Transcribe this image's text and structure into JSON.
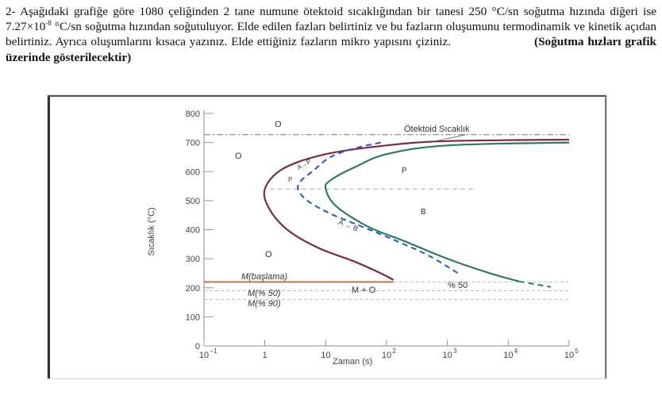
{
  "question": {
    "line1_a": "2- Aşağıdaki grafiğe göre 1080 çeliğinden 2 tane numune ötektoid sıcaklığından bir tanesi 250 °C/sn soğutma hızında diğeri ise 7.27×10",
    "line1_exp": "-8",
    "line1_b": " °C/sn soğutma hızından soğutuluyor. Elde edilen fazları belirtiniz ve bu fazların oluşumunu termodinamik ve kinetik açıdan belirtiniz. Ayrıca oluşumlarını kısaca yazınız. Elde ettiğiniz fazların mikro yapısını çiziniz.",
    "note": "(Soğutma hızları grafik üzerinde gösterilecektir)"
  },
  "chart_data": {
    "type": "line",
    "title": "",
    "xlabel": "Zaman (s)",
    "ylabel": "Sıcaklık (°C)",
    "x_scale": "log",
    "xlim": [
      0.1,
      100000
    ],
    "ylim": [
      0,
      800
    ],
    "y_ticks": [
      "0",
      "100",
      "200",
      "300",
      "400",
      "500",
      "600",
      "700",
      "800"
    ],
    "x_ticks": [
      {
        "base": "10",
        "exp": "−1"
      },
      {
        "base": "1",
        "exp": ""
      },
      {
        "base": "10",
        "exp": ""
      },
      {
        "base": "10",
        "exp": "2"
      },
      {
        "base": "10",
        "exp": "3"
      },
      {
        "base": "10",
        "exp": "4"
      },
      {
        "base": "10",
        "exp": "5"
      }
    ],
    "eutectoid_temperature": 727,
    "series": [
      {
        "style": "solid",
        "color": "#7b2a3f",
        "points": [
          [
            100000,
            710
          ],
          [
            1000,
            705
          ],
          [
            100,
            690
          ],
          [
            10,
            660
          ],
          [
            2,
            610
          ],
          [
            1,
            540
          ],
          [
            1.2,
            470
          ],
          [
            2.5,
            395
          ],
          [
            8,
            335
          ],
          [
            30,
            290
          ],
          [
            80,
            250
          ],
          [
            130,
            227
          ]
        ]
      },
      {
        "style": "solid",
        "color": "#2d7a64",
        "points": [
          [
            100000,
            700
          ],
          [
            1000,
            690
          ],
          [
            100,
            660
          ],
          [
            30,
            615
          ],
          [
            12,
            570
          ],
          [
            10,
            540
          ],
          [
            15,
            480
          ],
          [
            50,
            410
          ],
          [
            200,
            360
          ],
          [
            1000,
            300
          ],
          [
            5000,
            250
          ],
          [
            15000,
            222
          ]
        ]
      },
      {
        "style": "dashed",
        "color": "#2a58b8",
        "points": [
          [
            80,
            700
          ],
          [
            30,
            680
          ],
          [
            12,
            650
          ],
          [
            6,
            600
          ],
          [
            4,
            570
          ],
          [
            3.5,
            540
          ],
          [
            5,
            500
          ],
          [
            12,
            455
          ],
          [
            40,
            410
          ],
          [
            150,
            360
          ],
          [
            500,
            310
          ],
          [
            1500,
            250
          ]
        ]
      },
      {
        "style": "dashed",
        "color": "#2d7a64",
        "points": [
          [
            15000,
            222
          ],
          [
            30000,
            211
          ],
          [
            50000,
            203
          ]
        ]
      }
    ],
    "reference_lines": [
      {
        "name": "eutectoid",
        "y": 727,
        "style": "dash-dot"
      },
      {
        "name": "M_start",
        "y": 220,
        "style": "solid",
        "color": "#c96b30"
      },
      {
        "name": "M_50",
        "y": 190,
        "style": "dashed"
      },
      {
        "name": "M_90",
        "y": 160,
        "style": "dashed"
      },
      {
        "name": "isothermal_540",
        "y": 540,
        "style": "dashed"
      }
    ],
    "annotations": {
      "eutectoid": "Ötektoid Sıcaklık",
      "M_start": "M(başlama)",
      "M_50": "M(% 50)",
      "M_90": "M(% 90)",
      "M_plus_O": "M + O",
      "pct50": "% 50",
      "O_top": "O",
      "O_left": "O",
      "O_bottom": "O",
      "P": "P",
      "B": "B",
      "P_dash": "P",
      "A_to_P": "A→P",
      "A_to_B": "A → B"
    }
  }
}
